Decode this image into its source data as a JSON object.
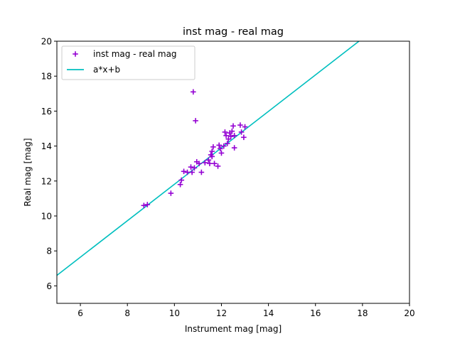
{
  "chart_data": {
    "type": "scatter",
    "title": "inst mag - real mag",
    "xlabel": "Instrument mag [mag]",
    "ylabel": "Real mag [mag]",
    "xlim": [
      5,
      20
    ],
    "ylim": [
      5,
      20
    ],
    "xticks": [
      6,
      8,
      10,
      12,
      14,
      16,
      18,
      20
    ],
    "yticks": [
      6,
      8,
      10,
      12,
      14,
      16,
      18,
      20
    ],
    "grid": false,
    "legend_position": "top-left",
    "series": [
      {
        "name": "inst mag - real mag",
        "kind": "scatter",
        "marker": "plus",
        "color": "#9400d3",
        "points": [
          [
            8.7,
            10.6
          ],
          [
            8.85,
            10.65
          ],
          [
            9.85,
            11.3
          ],
          [
            10.25,
            11.8
          ],
          [
            10.3,
            12.05
          ],
          [
            10.4,
            12.55
          ],
          [
            10.55,
            12.5
          ],
          [
            10.7,
            12.8
          ],
          [
            10.75,
            12.5
          ],
          [
            10.8,
            17.1
          ],
          [
            10.85,
            12.75
          ],
          [
            10.9,
            15.45
          ],
          [
            10.95,
            13.1
          ],
          [
            11.05,
            13.0
          ],
          [
            11.15,
            12.5
          ],
          [
            11.3,
            13.05
          ],
          [
            11.45,
            13.2
          ],
          [
            11.5,
            13.0
          ],
          [
            11.55,
            13.5
          ],
          [
            11.6,
            13.4
          ],
          [
            11.6,
            13.7
          ],
          [
            11.65,
            13.95
          ],
          [
            11.7,
            13.0
          ],
          [
            11.85,
            12.85
          ],
          [
            11.9,
            14.05
          ],
          [
            11.95,
            13.85
          ],
          [
            12.0,
            13.6
          ],
          [
            12.1,
            14.0
          ],
          [
            12.15,
            14.8
          ],
          [
            12.2,
            14.6
          ],
          [
            12.25,
            14.15
          ],
          [
            12.3,
            14.4
          ],
          [
            12.35,
            14.75
          ],
          [
            12.4,
            14.55
          ],
          [
            12.45,
            14.85
          ],
          [
            12.5,
            15.15
          ],
          [
            12.55,
            13.9
          ],
          [
            12.55,
            14.6
          ],
          [
            12.8,
            15.2
          ],
          [
            12.85,
            14.8
          ],
          [
            12.95,
            14.5
          ],
          [
            13.0,
            15.1
          ]
        ]
      },
      {
        "name": "a*x+b",
        "kind": "line",
        "color": "#00bfbf",
        "points": [
          [
            5,
            6.6
          ],
          [
            17.85,
            20
          ]
        ]
      }
    ]
  }
}
